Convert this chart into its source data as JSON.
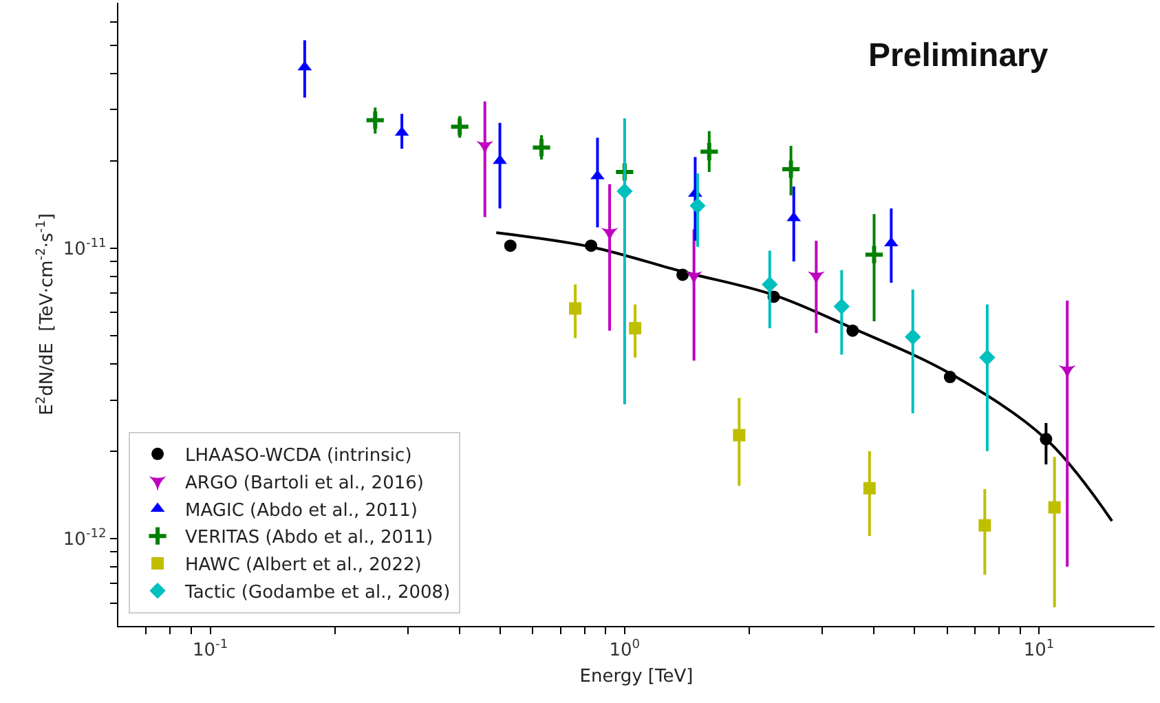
{
  "chart_data": {
    "type": "scatter",
    "xlabel": "Energy [TeV]",
    "ylabel": "E$^{2}$dN/dE  [TeV·cm$^{-2}$·s$^{-1}$]",
    "annotations": [
      "Preliminary"
    ],
    "log": "xy",
    "legend": "bottom left",
    "xlim": [
      0.06,
      19
    ],
    "ylim": [
      5e-13,
      7e-11
    ],
    "xticks": [
      {
        "value": 0.07,
        "label": null
      },
      {
        "value": 0.08,
        "label": null
      },
      {
        "value": 0.09,
        "label": null
      },
      {
        "value": 0.1,
        "label": "10$^{-1}$"
      },
      {
        "value": 0.2,
        "label": null
      },
      {
        "value": 0.3,
        "label": null
      },
      {
        "value": 0.4,
        "label": null
      },
      {
        "value": 0.5,
        "label": null
      },
      {
        "value": 0.6,
        "label": null
      },
      {
        "value": 0.7,
        "label": null
      },
      {
        "value": 0.8,
        "label": null
      },
      {
        "value": 0.9,
        "label": null
      },
      {
        "value": 1,
        "label": "10$^{0}$"
      },
      {
        "value": 2,
        "label": null
      },
      {
        "value": 3,
        "label": null
      },
      {
        "value": 4,
        "label": null
      },
      {
        "value": 5,
        "label": null
      },
      {
        "value": 6,
        "label": null
      },
      {
        "value": 7,
        "label": null
      },
      {
        "value": 8,
        "label": null
      },
      {
        "value": 9,
        "label": null
      },
      {
        "value": 10,
        "label": "10$^{1}$"
      }
    ],
    "yticks": [
      {
        "value": 6e-13,
        "label": null
      },
      {
        "value": 7e-13,
        "label": null
      },
      {
        "value": 8e-13,
        "label": null
      },
      {
        "value": 9e-13,
        "label": null
      },
      {
        "value": 1e-12,
        "label": "10$^{-12}$"
      },
      {
        "value": 2e-12,
        "label": null
      },
      {
        "value": 3e-12,
        "label": null
      },
      {
        "value": 4e-12,
        "label": null
      },
      {
        "value": 5e-12,
        "label": null
      },
      {
        "value": 6e-12,
        "label": null
      },
      {
        "value": 7e-12,
        "label": null
      },
      {
        "value": 8e-12,
        "label": null
      },
      {
        "value": 9e-12,
        "label": null
      },
      {
        "value": 1e-11,
        "label": "10$^{-11}$"
      },
      {
        "value": 2e-11,
        "label": null
      },
      {
        "value": 3e-11,
        "label": null
      },
      {
        "value": 4e-11,
        "label": null
      },
      {
        "value": 5e-11,
        "label": null
      },
      {
        "value": 6e-11,
        "label": null
      }
    ],
    "series": [
      {
        "type": "line",
        "color": "#000000",
        "line_style": "solid",
        "marker": "none",
        "x": [
          0.49,
          0.83,
          1.38,
          2.29,
          3.55,
          6.1,
          10.4,
          15
        ],
        "values": [
          1.13e-11,
          1.01e-11,
          8.3e-12,
          6.9e-12,
          5.3e-12,
          3.7e-12,
          2.2e-12,
          1.15e-12
        ]
      },
      {
        "name": "LHAASO-WCDA (intrinsic)",
        "color": "#000000",
        "marker": "circle",
        "x": [
          0.53,
          0.83,
          1.38,
          2.29,
          3.55,
          6.1,
          10.4
        ],
        "values": [
          1.02e-11,
          1.02e-11,
          8.1e-12,
          6.8e-12,
          5.2e-12,
          3.6e-12,
          2.2e-12
        ],
        "errors": [
          null,
          null,
          null,
          null,
          null,
          null,
          [
            1.8e-12,
            2.5e-12
          ]
        ]
      },
      {
        "name": "ARGO (Bartoli et al., 2016)",
        "color": "#bf00bf",
        "marker": "star",
        "x": [
          0.46,
          0.92,
          1.47,
          2.9,
          11.7
        ],
        "values": [
          2.25e-11,
          1.13e-11,
          8e-12,
          8e-12,
          3.8e-12
        ],
        "errors": [
          [
            1.28e-11,
            3.2e-11
          ],
          [
            5.2e-12,
            1.66e-11
          ],
          [
            4.1e-12,
            1.16e-11
          ],
          [
            5.1e-12,
            1.06e-11
          ],
          [
            8e-13,
            6.6e-12
          ]
        ]
      },
      {
        "name": "MAGIC (Abdo et al., 2011)",
        "color": "#0000ff",
        "marker": "triangle",
        "x": [
          0.169,
          0.29,
          0.5,
          0.86,
          1.48,
          2.56,
          4.4
        ],
        "values": [
          4.2e-11,
          2.5e-11,
          2e-11,
          1.77e-11,
          1.54e-11,
          1.27e-11,
          1.04e-11
        ],
        "errors": [
          [
            3.3e-11,
            5.2e-11
          ],
          [
            2.2e-11,
            2.9e-11
          ],
          [
            1.37e-11,
            2.7e-11
          ],
          [
            1.18e-11,
            2.4e-11
          ],
          [
            1.06e-11,
            2.06e-11
          ],
          [
            9e-12,
            1.63e-11
          ],
          [
            7.6e-12,
            1.37e-11
          ]
        ]
      },
      {
        "name": "VERITAS (Abdo et al., 2011)",
        "color": "#008000",
        "marker": "cross",
        "x": [
          0.25,
          0.4,
          0.63,
          1.0,
          1.6,
          2.52,
          4.0
        ],
        "values": [
          2.76e-11,
          2.62e-11,
          2.22e-11,
          1.83e-11,
          2.15e-11,
          1.87e-11,
          9.5e-12
        ],
        "errors": [
          [
            2.48e-11,
            3.05e-11
          ],
          [
            2.4e-11,
            2.85e-11
          ],
          [
            2.02e-11,
            2.45e-11
          ],
          [
            1.75e-11,
            1.93e-11
          ],
          [
            1.83e-11,
            2.53e-11
          ],
          [
            1.52e-11,
            2.25e-11
          ],
          [
            5.6e-12,
            1.31e-11
          ]
        ]
      },
      {
        "name": "HAWC (Albert et al., 2022)",
        "color": "#bfbf00",
        "marker": "square",
        "x": [
          0.76,
          1.06,
          1.89,
          3.9,
          7.4,
          10.9
        ],
        "values": [
          6.2e-12,
          5.3e-12,
          2.27e-12,
          1.49e-12,
          1.11e-12,
          1.28e-12
        ],
        "errors": [
          [
            4.9e-12,
            7.5e-12
          ],
          [
            4.2e-12,
            6.4e-12
          ],
          [
            1.52e-12,
            3.05e-12
          ],
          [
            1.02e-12,
            2e-12
          ],
          [
            7.5e-13,
            1.48e-12
          ],
          [
            5.8e-13,
            1.91e-12
          ]
        ]
      },
      {
        "name": "Tactic (Godambe et al., 2008)",
        "color": "#00bfbf",
        "marker": "diamond",
        "x": [
          1.0,
          1.5,
          2.24,
          3.34,
          4.96,
          7.5
        ],
        "values": [
          1.57e-11,
          1.4e-11,
          7.5e-12,
          6.3e-12,
          4.95e-12,
          4.2e-12
        ],
        "errors": [
          [
            2.9e-12,
            2.8e-11
          ],
          [
            1.01e-11,
            1.81e-11
          ],
          [
            5.3e-12,
            9.8e-12
          ],
          [
            4.3e-12,
            8.4e-12
          ],
          [
            2.7e-12,
            7.2e-12
          ],
          [
            2e-12,
            6.4e-12
          ]
        ]
      }
    ]
  }
}
